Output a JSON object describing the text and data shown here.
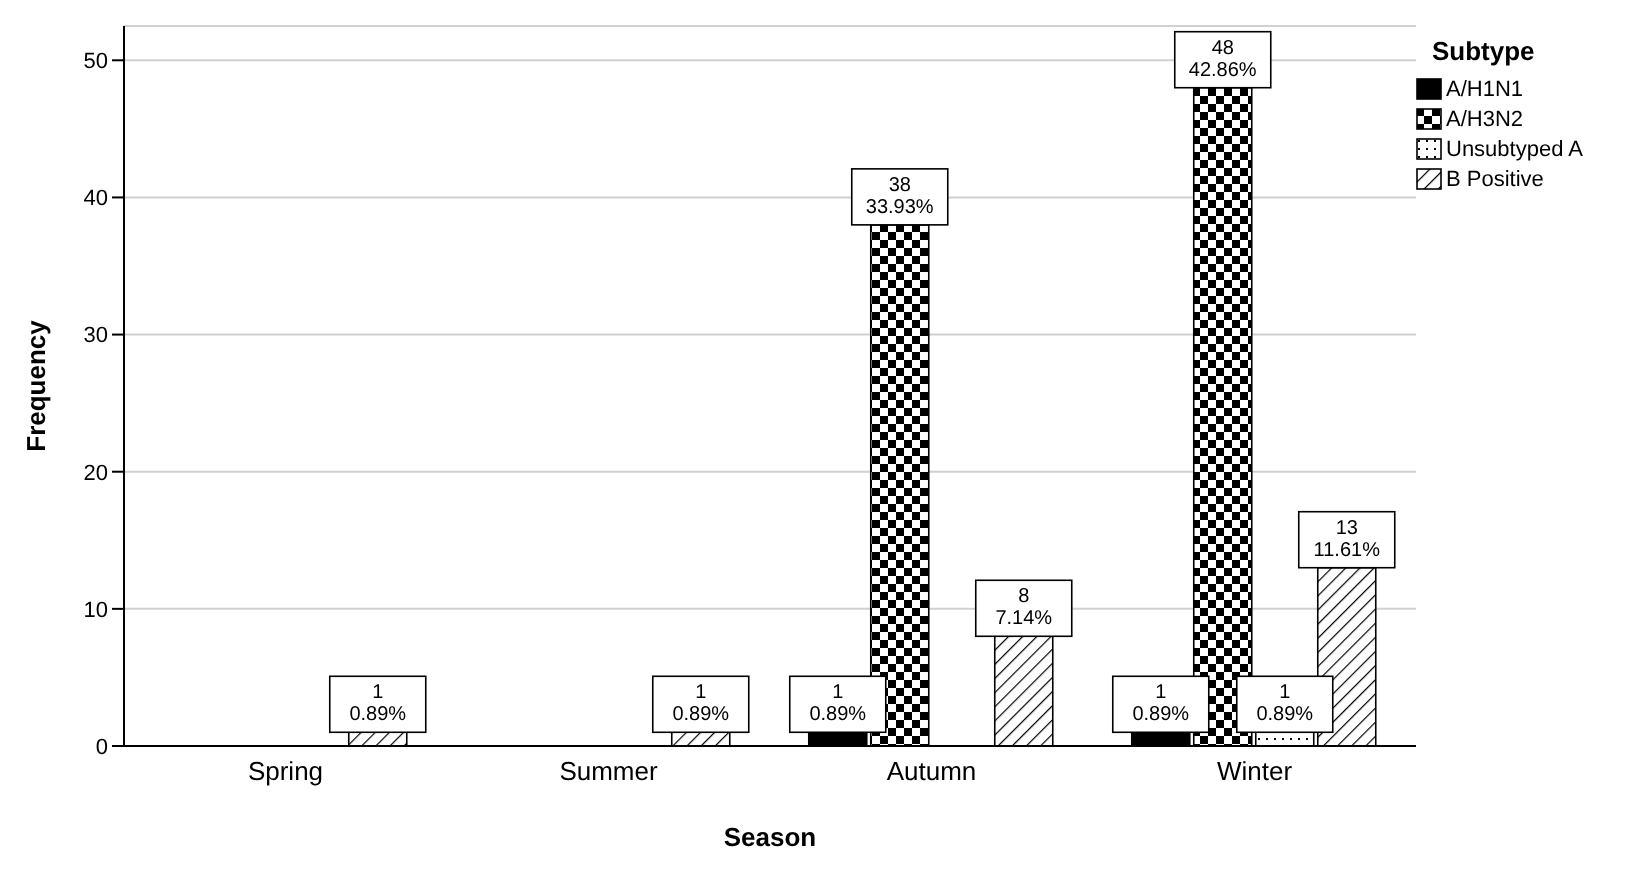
{
  "chart_data": {
    "type": "bar",
    "xlabel": "Season",
    "ylabel": "Frequency",
    "legend_title": "Subtype",
    "categories": [
      "Spring",
      "Summer",
      "Autumn",
      "Winter"
    ],
    "series": [
      {
        "name": "A/H1N1",
        "color": "#000000",
        "values": [
          null,
          null,
          1,
          1
        ],
        "value_labels": [
          null,
          null,
          "1\n0.89%",
          "1\n0.89%"
        ]
      },
      {
        "name": "A/H3N2",
        "color": "#000000",
        "values": [
          null,
          null,
          38,
          48
        ],
        "value_labels": [
          null,
          null,
          "38\n33.93%",
          "48\n42.86%"
        ]
      },
      {
        "name": "Unsubtyped A",
        "color": "#000000",
        "values": [
          null,
          null,
          null,
          1
        ],
        "value_labels": [
          null,
          null,
          null,
          "1\n0.89%"
        ]
      },
      {
        "name": "B Positive",
        "color": "#000000",
        "values": [
          1,
          1,
          8,
          13
        ],
        "value_labels": [
          "1\n0.89%",
          "1\n0.89%",
          "8\n7.14%",
          "13\n11.61%"
        ]
      }
    ],
    "ylim": [
      0,
      52.5
    ],
    "yticks": [
      0,
      10,
      20,
      30,
      40,
      50
    ],
    "grid": "y",
    "legend": "top right"
  }
}
